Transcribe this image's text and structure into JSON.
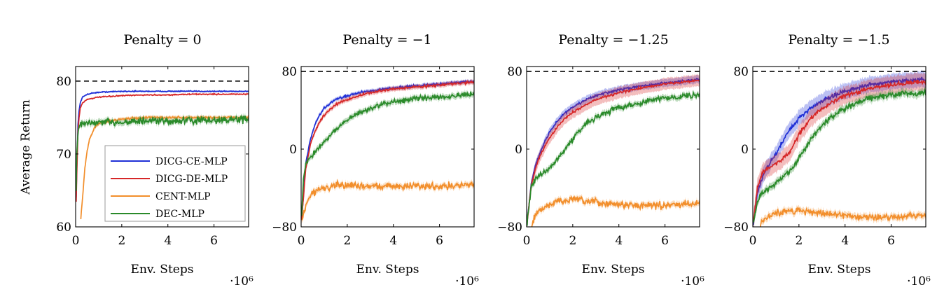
{
  "figure": {
    "ylabel": "Average Return",
    "xlabel": "Env. Steps",
    "x_multiplier": "·10⁶",
    "reference_line": 80
  },
  "legend": [
    {
      "name": "DICG-CE-MLP",
      "color": "#1f2fd6"
    },
    {
      "name": "DICG-DE-MLP",
      "color": "#d62728"
    },
    {
      "name": "CENT-MLP",
      "color": "#f28e2b"
    },
    {
      "name": "DEC-MLP",
      "color": "#2a8a2a"
    }
  ],
  "chart_data": [
    {
      "type": "line",
      "title": "Penalty = 0",
      "xlabel": "Env. Steps",
      "ylabel": "Average Return",
      "xlim": [
        0,
        7.5
      ],
      "ylim": [
        60,
        82
      ],
      "xticks": [
        0,
        2,
        4,
        6
      ],
      "yticks": [
        60,
        70,
        80
      ],
      "ytick_labels": [
        "60",
        "70",
        "80"
      ],
      "reference_line": 80,
      "series": [
        {
          "name": "DICG-CE-MLP",
          "x": [
            0,
            0.05,
            0.1,
            0.15,
            0.2,
            0.3,
            0.5,
            0.8,
            1.2,
            2,
            3,
            4,
            5,
            6,
            7.5
          ],
          "y": [
            60,
            68,
            74,
            76,
            77,
            77.8,
            78.2,
            78.4,
            78.5,
            78.6,
            78.6,
            78.6,
            78.6,
            78.6,
            78.6
          ],
          "noise": 0.05,
          "band": 0.1
        },
        {
          "name": "DICG-DE-MLP",
          "x": [
            0,
            0.05,
            0.1,
            0.15,
            0.2,
            0.3,
            0.5,
            1,
            2,
            3,
            4,
            5,
            6,
            7.5
          ],
          "y": [
            60,
            67,
            73,
            75,
            76.3,
            77,
            77.5,
            77.8,
            78,
            78.1,
            78.1,
            78.2,
            78.2,
            78.2
          ],
          "noise": 0.05,
          "band": 0.1
        },
        {
          "name": "CENT-MLP",
          "x": [
            0.2,
            0.3,
            0.4,
            0.5,
            0.6,
            0.8,
            1,
            1.5,
            2,
            3,
            4,
            5,
            6,
            7.5
          ],
          "y": [
            60,
            64,
            68,
            70.5,
            72,
            73.5,
            74.2,
            74.5,
            74.8,
            75,
            75,
            75,
            75,
            75
          ],
          "noise": 0.1,
          "band": 0.25
        },
        {
          "name": "DEC-MLP",
          "x": [
            0,
            0.05,
            0.1,
            0.2,
            0.5,
            1,
            2,
            3,
            4,
            5,
            6,
            7.5
          ],
          "y": [
            60,
            70,
            73,
            74,
            74.2,
            74.3,
            74.4,
            74.5,
            74.5,
            74.6,
            74.6,
            74.8
          ],
          "noise": 0.35,
          "band": 0.4
        }
      ]
    },
    {
      "type": "line",
      "title": "Penalty = −1",
      "xlabel": "Env. Steps",
      "xlim": [
        0,
        7.5
      ],
      "ylim": [
        -80,
        85
      ],
      "xticks": [
        0,
        2,
        4,
        6
      ],
      "yticks": [
        -80,
        0,
        80
      ],
      "ytick_labels": [
        "−80",
        "0",
        "80"
      ],
      "reference_line": 80,
      "series": [
        {
          "name": "DICG-CE-MLP",
          "x": [
            0,
            0.2,
            0.4,
            0.6,
            0.8,
            1,
            1.3,
            1.6,
            2,
            2.5,
            3,
            4,
            5,
            6,
            7.5
          ],
          "y": [
            -80,
            -15,
            10,
            25,
            35,
            42,
            48,
            52,
            55,
            58,
            60,
            63,
            65,
            67,
            70
          ],
          "noise": 0.8,
          "band": 2
        },
        {
          "name": "DICG-DE-MLP",
          "x": [
            0,
            0.2,
            0.4,
            0.6,
            0.8,
            1,
            1.3,
            1.6,
            2,
            2.5,
            3,
            4,
            5,
            6,
            7.5
          ],
          "y": [
            -80,
            -20,
            5,
            18,
            28,
            35,
            42,
            47,
            51,
            55,
            58,
            62,
            64,
            66,
            69
          ],
          "noise": 0.8,
          "band": 2.5
        },
        {
          "name": "CENT-MLP",
          "x": [
            0,
            0.1,
            0.3,
            0.5,
            0.8,
            1,
            1.5,
            2,
            3,
            4,
            5,
            6,
            7.5
          ],
          "y": [
            -80,
            -65,
            -52,
            -45,
            -41,
            -40,
            -38,
            -37,
            -38,
            -38,
            -38,
            -38,
            -37
          ],
          "noise": 2.5,
          "band": 3
        },
        {
          "name": "DEC-MLP",
          "x": [
            0,
            0.1,
            0.2,
            0.4,
            0.6,
            0.8,
            1,
            1.5,
            2,
            2.5,
            3,
            4,
            5,
            6,
            7.5
          ],
          "y": [
            -80,
            -30,
            -15,
            -8,
            -3,
            2,
            8,
            20,
            30,
            37,
            42,
            49,
            52,
            54,
            56
          ],
          "noise": 1.8,
          "band": 3
        }
      ]
    },
    {
      "type": "line",
      "title": "Penalty = −1.25",
      "xlabel": "Env. Steps",
      "xlim": [
        0,
        7.5
      ],
      "ylim": [
        -80,
        85
      ],
      "xticks": [
        0,
        2,
        4,
        6
      ],
      "yticks": [
        -80,
        0,
        80
      ],
      "ytick_labels": [
        "−80",
        "0",
        "80"
      ],
      "reference_line": 80,
      "series": [
        {
          "name": "DICG-CE-MLP",
          "x": [
            0,
            0.2,
            0.4,
            0.6,
            0.8,
            1,
            1.3,
            1.6,
            2,
            2.5,
            3,
            4,
            5,
            6,
            7.5
          ],
          "y": [
            -80,
            -35,
            -15,
            -3,
            8,
            18,
            28,
            36,
            43,
            50,
            55,
            61,
            65,
            68,
            72
          ],
          "noise": 0.8,
          "band": 4
        },
        {
          "name": "DICG-DE-MLP",
          "x": [
            0,
            0.2,
            0.4,
            0.6,
            0.8,
            1,
            1.3,
            1.6,
            2,
            2.5,
            3,
            4,
            5,
            6,
            7.5
          ],
          "y": [
            -80,
            -38,
            -18,
            -6,
            3,
            12,
            22,
            30,
            38,
            45,
            51,
            58,
            63,
            67,
            71
          ],
          "noise": 0.8,
          "band": 6
        },
        {
          "name": "CENT-MLP",
          "x": [
            0.2,
            0.3,
            0.5,
            0.8,
            1,
            1.5,
            2,
            3,
            4,
            5,
            6,
            7.5
          ],
          "y": [
            -80,
            -72,
            -65,
            -60,
            -57,
            -53,
            -52,
            -55,
            -57,
            -58,
            -58,
            -55
          ],
          "noise": 2.5,
          "band": 3
        },
        {
          "name": "DEC-MLP",
          "x": [
            0,
            0.2,
            0.4,
            0.7,
            1,
            1.5,
            2,
            2.5,
            3,
            4,
            5,
            6,
            7.5
          ],
          "y": [
            -80,
            -40,
            -30,
            -25,
            -20,
            -5,
            10,
            25,
            33,
            43,
            48,
            53,
            56
          ],
          "noise": 2,
          "band": 3
        }
      ]
    },
    {
      "type": "line",
      "title": "Penalty = −1.5",
      "xlabel": "Env. Steps",
      "xlim": [
        0,
        7.5
      ],
      "ylim": [
        -80,
        85
      ],
      "xticks": [
        0,
        2,
        4,
        6
      ],
      "yticks": [
        -80,
        0,
        80
      ],
      "ytick_labels": [
        "−80",
        "0",
        "80"
      ],
      "reference_line": 80,
      "series": [
        {
          "name": "DICG-CE-MLP",
          "x": [
            0,
            0.2,
            0.4,
            0.6,
            0.8,
            1,
            1.3,
            1.6,
            2,
            2.5,
            3,
            4,
            5,
            6,
            7.5
          ],
          "y": [
            -80,
            -45,
            -30,
            -20,
            -12,
            -5,
            8,
            20,
            32,
            42,
            50,
            60,
            66,
            69,
            72
          ],
          "noise": 1.5,
          "band": 8
        },
        {
          "name": "DICG-DE-MLP",
          "x": [
            0,
            0.2,
            0.4,
            0.6,
            0.8,
            1,
            1.3,
            1.6,
            2,
            2.5,
            3,
            4,
            5,
            6,
            7.5
          ],
          "y": [
            -80,
            -40,
            -25,
            -20,
            -18,
            -15,
            -10,
            -3,
            15,
            32,
            42,
            55,
            62,
            66,
            70
          ],
          "noise": 1.5,
          "band": 9
        },
        {
          "name": "CENT-MLP",
          "x": [
            0.3,
            0.4,
            0.6,
            0.8,
            1,
            1.5,
            2,
            3,
            4,
            5,
            6,
            7.5
          ],
          "y": [
            -80,
            -75,
            -70,
            -68,
            -66,
            -64,
            -63,
            -66,
            -68,
            -70,
            -70,
            -68
          ],
          "noise": 2.5,
          "band": 3.5
        },
        {
          "name": "DEC-MLP",
          "x": [
            0,
            0.2,
            0.4,
            0.7,
            1,
            1.5,
            2,
            2.5,
            3,
            4,
            5,
            6,
            7.5
          ],
          "y": [
            -80,
            -55,
            -45,
            -40,
            -35,
            -25,
            -10,
            10,
            25,
            42,
            52,
            56,
            58
          ],
          "noise": 2,
          "band": 4
        }
      ]
    }
  ]
}
